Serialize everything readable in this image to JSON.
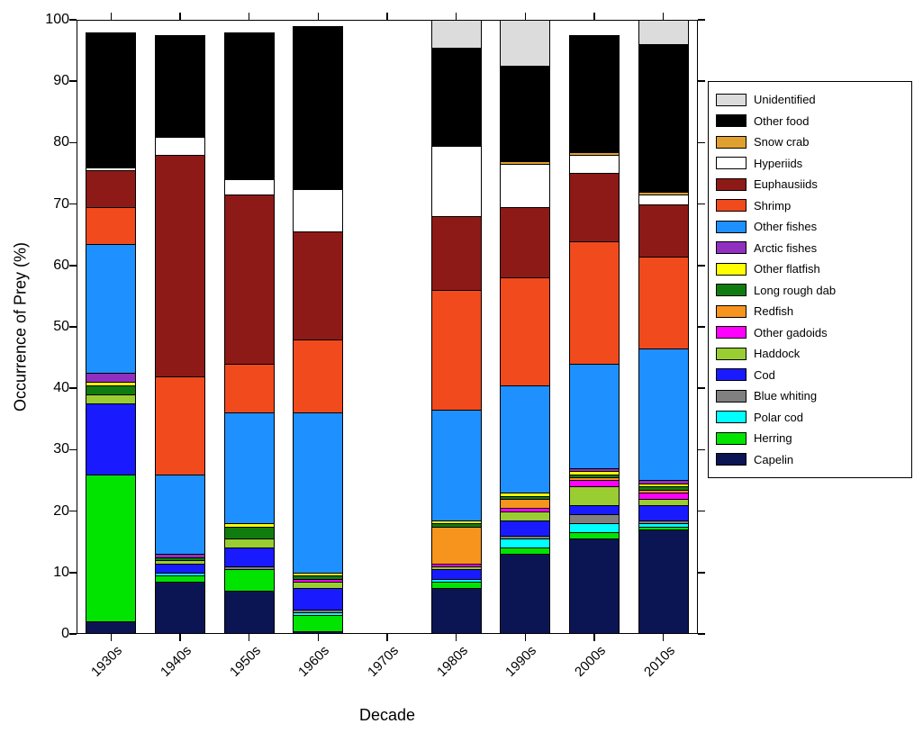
{
  "chart_data": {
    "type": "bar",
    "stacked": true,
    "title": "",
    "xlabel": "Decade",
    "ylabel": "Occurrence of Prey (%)",
    "ylim": [
      0,
      100
    ],
    "yticks": [
      0,
      10,
      20,
      30,
      40,
      50,
      60,
      70,
      80,
      90,
      100
    ],
    "grid": false,
    "legend_position": "right-outside",
    "legend_order_top_to_bottom": [
      "Unidentified",
      "Other food",
      "Snow crab",
      "Hyperiids",
      "Euphausiids",
      "Shrimp",
      "Other fishes",
      "Arctic fishes",
      "Other flatfish",
      "Long rough dab",
      "Redfish",
      "Other gadoids",
      "Haddock",
      "Cod",
      "Blue whiting",
      "Polar cod",
      "Herring",
      "Capelin"
    ],
    "categories": [
      "1930s",
      "1940s",
      "1950s",
      "1960s",
      "1970s",
      "1980s",
      "1990s",
      "2000s",
      "2010s"
    ],
    "series_note": "series listed bottom-to-top of stack; values are Occurrence of Prey (%) per decade; 1970s has no data",
    "series": [
      {
        "name": "Capelin",
        "color": "#0B1553",
        "values": [
          2,
          8.5,
          7,
          0.5,
          0,
          7.5,
          13,
          15.5,
          17
        ]
      },
      {
        "name": "Herring",
        "color": "#00E400",
        "values": [
          24,
          1,
          3.5,
          2.5,
          0,
          1,
          1,
          1,
          0.5
        ]
      },
      {
        "name": "Polar cod",
        "color": "#00FFFF",
        "values": [
          0,
          0.5,
          0,
          0.5,
          0,
          0.5,
          1.5,
          1.5,
          0.5
        ]
      },
      {
        "name": "Blue whiting",
        "color": "#808080",
        "values": [
          0,
          0,
          0.5,
          0.5,
          0,
          0,
          0.5,
          1.5,
          0.5
        ]
      },
      {
        "name": "Cod",
        "color": "#1A1AFF",
        "values": [
          11.5,
          1.5,
          3,
          3.5,
          0,
          1.5,
          2.5,
          1.5,
          2.5
        ]
      },
      {
        "name": "Haddock",
        "color": "#9ACD32",
        "values": [
          1.5,
          0.5,
          1.5,
          1,
          0,
          0.5,
          1.5,
          3,
          1
        ]
      },
      {
        "name": "Other gadoids",
        "color": "#FF00FF",
        "values": [
          0,
          0,
          0,
          0.5,
          0,
          0.5,
          0.5,
          1,
          1
        ]
      },
      {
        "name": "Redfish",
        "color": "#F7941D",
        "values": [
          0,
          0,
          0,
          0,
          0,
          6,
          1.5,
          0.5,
          0.5
        ]
      },
      {
        "name": "Long rough dab",
        "color": "#107C10",
        "values": [
          1.5,
          0.5,
          2,
          0.5,
          0,
          0.5,
          0.5,
          0.5,
          0.5
        ]
      },
      {
        "name": "Other flatfish",
        "color": "#FFFF00",
        "values": [
          0.5,
          0,
          0.5,
          0.5,
          0,
          0.5,
          0.5,
          0.5,
          0.5
        ]
      },
      {
        "name": "Arctic fishes",
        "color": "#9130C0",
        "values": [
          1.5,
          0.5,
          0,
          0,
          0,
          0,
          0,
          0.5,
          0.5
        ]
      },
      {
        "name": "Other fishes",
        "color": "#1E90FF",
        "values": [
          21,
          13,
          18,
          26,
          0,
          18,
          17.5,
          17,
          21.5
        ]
      },
      {
        "name": "Shrimp",
        "color": "#F04A1D",
        "values": [
          6,
          16,
          8,
          12,
          0,
          19.5,
          17.5,
          20,
          15
        ]
      },
      {
        "name": "Euphausiids",
        "color": "#8E1A17",
        "values": [
          6,
          36,
          27.5,
          17.5,
          0,
          12,
          11.5,
          11,
          8.5
        ]
      },
      {
        "name": "Hyperiids",
        "color": "#FFFFFF",
        "values": [
          0.5,
          3,
          2.5,
          7,
          0,
          11.5,
          7,
          3,
          1.5
        ]
      },
      {
        "name": "Snow crab",
        "color": "#E0A030",
        "values": [
          0,
          0,
          0,
          0,
          0,
          0,
          0.5,
          0.5,
          0.5
        ]
      },
      {
        "name": "Other food",
        "color": "#000000",
        "values": [
          22,
          16.5,
          24,
          26.5,
          0,
          16,
          15.5,
          19,
          24
        ]
      },
      {
        "name": "Unidentified",
        "color": "#DCDCDC",
        "values": [
          0,
          0,
          0,
          0,
          0,
          4.5,
          7.5,
          0,
          4
        ]
      }
    ]
  }
}
